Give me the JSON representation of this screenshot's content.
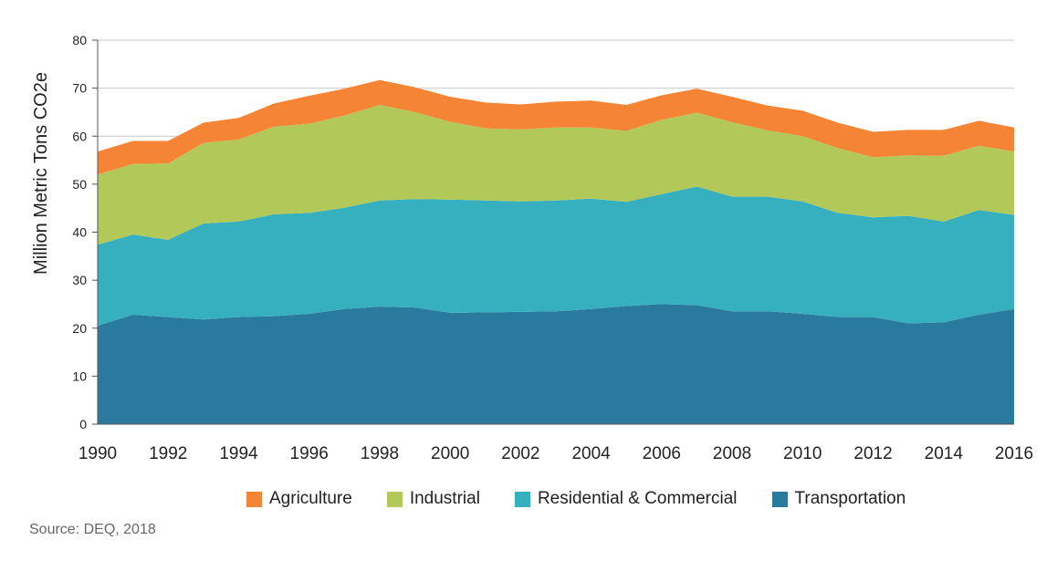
{
  "chart_data": {
    "type": "area",
    "stacked": true,
    "title": "",
    "xlabel": "",
    "ylabel": "Million Metric Tons CO2e",
    "xlim": [
      1990,
      2016
    ],
    "ylim": [
      0,
      80
    ],
    "yticks": [
      0,
      10,
      20,
      30,
      40,
      50,
      60,
      70,
      80
    ],
    "xticks": [
      1990,
      1992,
      1994,
      1996,
      1998,
      2000,
      2002,
      2004,
      2006,
      2008,
      2010,
      2012,
      2014,
      2016
    ],
    "grid": "horizontal",
    "x": [
      1990,
      1991,
      1992,
      1993,
      1994,
      1995,
      1996,
      1997,
      1998,
      1999,
      2000,
      2001,
      2002,
      2003,
      2004,
      2005,
      2006,
      2007,
      2008,
      2009,
      2010,
      2011,
      2012,
      2013,
      2014,
      2015,
      2016
    ],
    "series": [
      {
        "name": "Transportation",
        "color": "#2a7a9e",
        "values": [
          20.5,
          22.8,
          22.3,
          21.8,
          22.3,
          22.5,
          23.0,
          24.0,
          24.5,
          24.3,
          23.2,
          23.3,
          23.4,
          23.5,
          24.0,
          24.6,
          25.0,
          24.8,
          23.5,
          23.5,
          23.0,
          22.3,
          22.3,
          21.0,
          21.2,
          22.8,
          24.0
        ]
      },
      {
        "name": "Residential & Commercial",
        "color": "#36b0be",
        "values": [
          16.9,
          16.7,
          16.1,
          20.0,
          19.9,
          21.2,
          21.0,
          21.1,
          22.1,
          22.6,
          23.6,
          23.3,
          23.0,
          23.1,
          23.0,
          21.7,
          22.9,
          24.7,
          23.9,
          23.9,
          23.4,
          21.7,
          20.8,
          22.4,
          21.0,
          21.8,
          19.6
        ]
      },
      {
        "name": "Industrial",
        "color": "#b2c95a",
        "values": [
          14.6,
          14.7,
          15.9,
          16.8,
          17.1,
          18.3,
          18.6,
          19.2,
          19.9,
          18.1,
          16.2,
          15.0,
          15.0,
          15.2,
          14.8,
          14.8,
          15.5,
          15.4,
          15.5,
          13.8,
          13.6,
          13.5,
          12.5,
          12.6,
          13.7,
          13.4,
          13.2
        ]
      },
      {
        "name": "Agriculture",
        "color": "#f58535",
        "values": [
          4.8,
          4.8,
          4.7,
          4.2,
          4.5,
          4.8,
          5.8,
          5.6,
          5.2,
          5.2,
          5.2,
          5.4,
          5.2,
          5.4,
          5.6,
          5.4,
          5.1,
          5.0,
          5.3,
          5.2,
          5.3,
          5.3,
          5.3,
          5.3,
          5.4,
          5.2,
          5.0
        ]
      }
    ],
    "legend_order": [
      "Agriculture",
      "Industrial",
      "Residential & Commercial",
      "Transportation"
    ],
    "legend_position": "bottom"
  },
  "source_text": "Source: DEQ, 2018"
}
